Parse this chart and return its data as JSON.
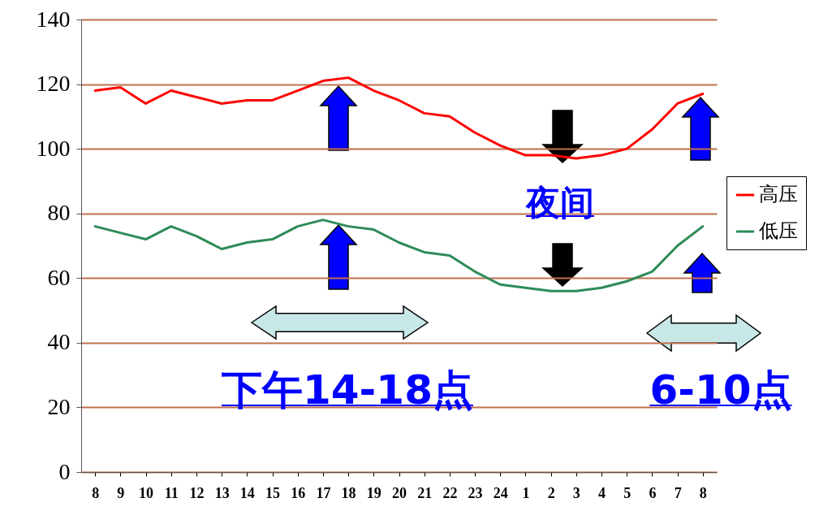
{
  "chart_data": {
    "type": "line",
    "categories": [
      "8",
      "9",
      "10",
      "11",
      "12",
      "13",
      "14",
      "15",
      "16",
      "17",
      "18",
      "19",
      "20",
      "21",
      "22",
      "23",
      "24",
      "1",
      "2",
      "3",
      "4",
      "5",
      "6",
      "7",
      "8"
    ],
    "series": [
      {
        "name": "高压",
        "color": "#ff0000",
        "values": [
          118,
          119,
          114,
          118,
          116,
          114,
          115,
          115,
          118,
          121,
          122,
          118,
          115,
          111,
          110,
          105,
          101,
          98,
          98,
          97,
          98,
          100,
          106,
          114,
          117
        ]
      },
      {
        "name": "低压",
        "color": "#2e8b57",
        "values": [
          76,
          74,
          72,
          76,
          73,
          69,
          71,
          72,
          76,
          78,
          76,
          75,
          71,
          68,
          67,
          62,
          58,
          57,
          56,
          56,
          57,
          59,
          62,
          70,
          76
        ]
      }
    ],
    "ylim": [
      0,
      140
    ],
    "yticks": [
      0,
      20,
      40,
      60,
      80,
      100,
      120,
      140
    ],
    "grid": "y",
    "legend": "right",
    "marker": "none",
    "line_style": "solid",
    "annotations": [
      "夜间",
      "下午14-18点",
      "6-10点"
    ]
  }
}
